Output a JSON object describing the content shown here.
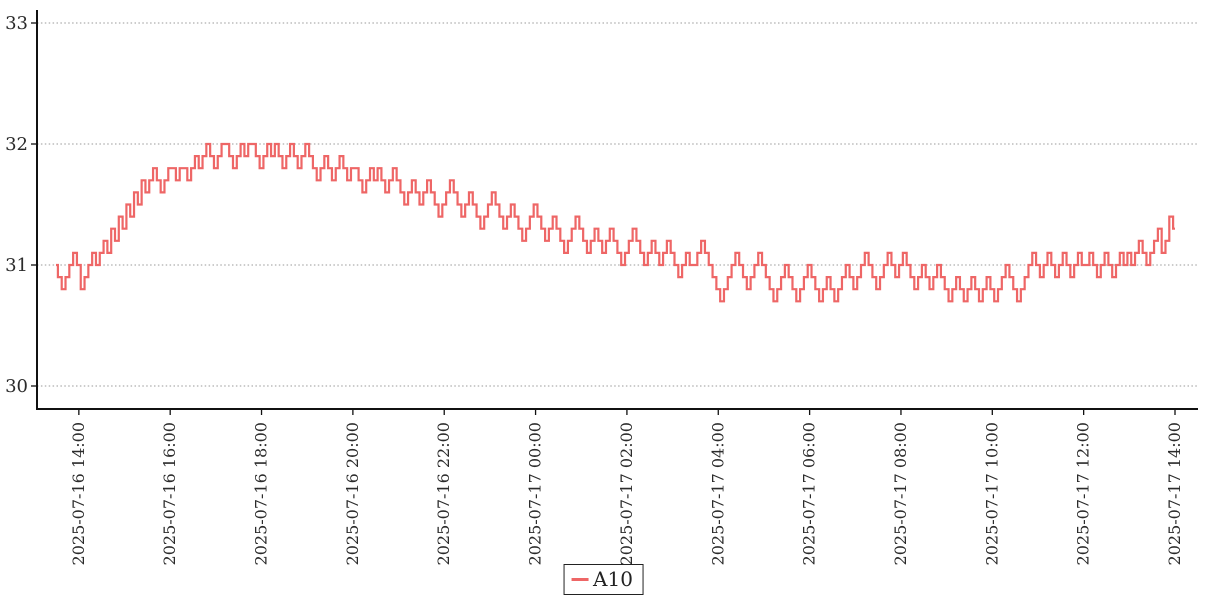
{
  "chart_data": {
    "type": "line",
    "step_style": "mid",
    "title": "",
    "xlabel": "",
    "ylabel": "",
    "grid": "horizontal-dotted",
    "x_start": "2025-07-16 13:30",
    "x_step_minutes": 5,
    "x_tick_labels": [
      "2025-07-16 14:00",
      "2025-07-16 16:00",
      "2025-07-16 18:00",
      "2025-07-16 20:00",
      "2025-07-16 22:00",
      "2025-07-17 00:00",
      "2025-07-17 02:00",
      "2025-07-17 04:00",
      "2025-07-17 06:00",
      "2025-07-17 08:00",
      "2025-07-17 10:00",
      "2025-07-17 12:00",
      "2025-07-17 14:00"
    ],
    "yticks": [
      33,
      32,
      31,
      30
    ],
    "ytick_labels": [
      "33",
      "32",
      "31",
      "30"
    ],
    "ylim": [
      29.8,
      33.1
    ],
    "legend": {
      "position": "bottom-center-outside",
      "border": true
    },
    "series": [
      {
        "name": "A10",
        "color": "#ee6666",
        "values": [
          31.0,
          30.9,
          30.8,
          30.9,
          31.0,
          31.1,
          31.0,
          30.8,
          30.9,
          31.0,
          31.1,
          31.0,
          31.1,
          31.2,
          31.1,
          31.3,
          31.2,
          31.4,
          31.3,
          31.5,
          31.4,
          31.6,
          31.5,
          31.7,
          31.6,
          31.7,
          31.8,
          31.7,
          31.6,
          31.7,
          31.8,
          31.8,
          31.7,
          31.8,
          31.8,
          31.7,
          31.8,
          31.9,
          31.8,
          31.9,
          32.0,
          31.9,
          31.8,
          31.9,
          32.0,
          32.0,
          31.9,
          31.8,
          31.9,
          32.0,
          31.9,
          32.0,
          32.0,
          31.9,
          31.8,
          31.9,
          32.0,
          31.9,
          32.0,
          31.9,
          31.8,
          31.9,
          32.0,
          31.9,
          31.8,
          31.9,
          32.0,
          31.9,
          31.8,
          31.7,
          31.8,
          31.9,
          31.8,
          31.7,
          31.8,
          31.9,
          31.8,
          31.7,
          31.8,
          31.8,
          31.7,
          31.6,
          31.7,
          31.8,
          31.7,
          31.8,
          31.7,
          31.6,
          31.7,
          31.8,
          31.7,
          31.6,
          31.5,
          31.6,
          31.7,
          31.6,
          31.5,
          31.6,
          31.7,
          31.6,
          31.5,
          31.4,
          31.5,
          31.6,
          31.7,
          31.6,
          31.5,
          31.4,
          31.5,
          31.6,
          31.5,
          31.4,
          31.3,
          31.4,
          31.5,
          31.6,
          31.5,
          31.4,
          31.3,
          31.4,
          31.5,
          31.4,
          31.3,
          31.2,
          31.3,
          31.4,
          31.5,
          31.4,
          31.3,
          31.2,
          31.3,
          31.4,
          31.3,
          31.2,
          31.1,
          31.2,
          31.3,
          31.4,
          31.3,
          31.2,
          31.1,
          31.2,
          31.3,
          31.2,
          31.1,
          31.2,
          31.3,
          31.2,
          31.1,
          31.0,
          31.1,
          31.2,
          31.3,
          31.2,
          31.1,
          31.0,
          31.1,
          31.2,
          31.1,
          31.0,
          31.1,
          31.2,
          31.1,
          31.0,
          30.9,
          31.0,
          31.1,
          31.0,
          31.0,
          31.1,
          31.2,
          31.1,
          31.0,
          30.9,
          30.8,
          30.7,
          30.8,
          30.9,
          31.0,
          31.1,
          31.0,
          30.9,
          30.8,
          30.9,
          31.0,
          31.1,
          31.0,
          30.9,
          30.8,
          30.7,
          30.8,
          30.9,
          31.0,
          30.9,
          30.8,
          30.7,
          30.8,
          30.9,
          31.0,
          30.9,
          30.8,
          30.7,
          30.8,
          30.9,
          30.8,
          30.7,
          30.8,
          30.9,
          31.0,
          30.9,
          30.8,
          30.9,
          31.0,
          31.1,
          31.0,
          30.9,
          30.8,
          30.9,
          31.0,
          31.1,
          31.0,
          30.9,
          31.0,
          31.1,
          31.0,
          30.9,
          30.8,
          30.9,
          31.0,
          30.9,
          30.8,
          30.9,
          31.0,
          30.9,
          30.8,
          30.7,
          30.8,
          30.9,
          30.8,
          30.7,
          30.8,
          30.9,
          30.8,
          30.7,
          30.8,
          30.9,
          30.8,
          30.7,
          30.8,
          30.9,
          31.0,
          30.9,
          30.8,
          30.7,
          30.8,
          30.9,
          31.0,
          31.1,
          31.0,
          30.9,
          31.0,
          31.1,
          31.0,
          30.9,
          31.0,
          31.1,
          31.0,
          30.9,
          31.0,
          31.1,
          31.0,
          31.0,
          31.1,
          31.0,
          30.9,
          31.0,
          31.1,
          31.0,
          30.9,
          31.0,
          31.1,
          31.0,
          31.1,
          31.0,
          31.1,
          31.2,
          31.1,
          31.0,
          31.1,
          31.2,
          31.3,
          31.1,
          31.2,
          31.4,
          31.3
        ]
      }
    ],
    "colors": {
      "series_red": "#ee6666",
      "axis": "#111111",
      "grid": "#999999",
      "text": "#2b2b2b",
      "background": "#ffffff"
    }
  }
}
